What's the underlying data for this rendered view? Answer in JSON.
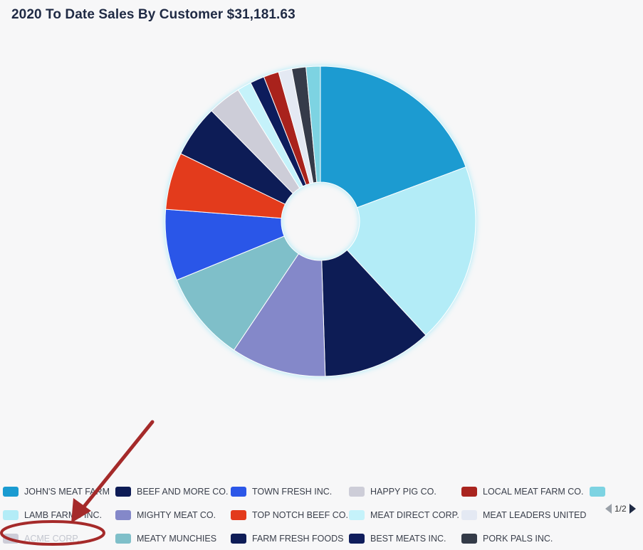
{
  "title": "2020 To Date Sales By Customer $31,181.63",
  "chart_data": {
    "type": "pie",
    "donut": true,
    "title": "2020 To Date Sales By Customer $31,181.63",
    "slices": [
      {
        "label": "JOHN'S MEAT FARM",
        "value": 19.5,
        "color": "#1a9bd1"
      },
      {
        "label": "LAMB FARMS INC.",
        "value": 19.0,
        "color": "#b3ecf7"
      },
      {
        "label": "BEEF AND MORE CO.",
        "value": 11.5,
        "color": "#0d1b55"
      },
      {
        "label": "MIGHTY MEAT CO.",
        "value": 10.0,
        "color": "#8488c9"
      },
      {
        "label": "MEATY MUNCHIES",
        "value": 9.5,
        "color": "#7fbfc9"
      },
      {
        "label": "TOWN FRESH INC.",
        "value": 7.5,
        "color": "#2c57e8"
      },
      {
        "label": "TOP NOTCH BEEF CO.",
        "value": 6.0,
        "color": "#e33a1c"
      },
      {
        "label": "FARM FRESH FOODS",
        "value": 5.5,
        "color": "#0e1c57"
      },
      {
        "label": "HAPPY PIG CO.",
        "value": 3.5,
        "color": "#cdcdd8"
      },
      {
        "label": "MEAT DIRECT CORP.",
        "value": 1.5,
        "color": "#c5f2fa"
      },
      {
        "label": "BEST MEATS INC.",
        "value": 1.5,
        "color": "#0f1d5c"
      },
      {
        "label": "LOCAL MEAT FARM CO.",
        "value": 1.6,
        "color": "#a9241f"
      },
      {
        "label": "MEAT LEADERS UNITED",
        "value": 1.4,
        "color": "#e4e9f3"
      },
      {
        "label": "PORK PALS INC.",
        "value": 1.5,
        "color": "#343b48"
      },
      {
        "label": "",
        "value": 1.5,
        "color": "#7dd3e2"
      }
    ],
    "legend_position": "bottom"
  },
  "legend": {
    "rows": [
      [
        {
          "label": "JOHN'S MEAT FARM",
          "color": "#1a9bd1"
        },
        {
          "label": "BEEF AND MORE CO.",
          "color": "#0d1b55"
        },
        {
          "label": "TOWN FRESH INC.",
          "color": "#2c57e8"
        },
        {
          "label": "HAPPY PIG CO.",
          "color": "#cdcdd8"
        },
        {
          "label": "LOCAL MEAT FARM CO.",
          "color": "#a9241f"
        },
        {
          "label": "",
          "color": "#7dd3e2"
        }
      ],
      [
        {
          "label": "LAMB FARMS INC.",
          "color": "#b3ecf7"
        },
        {
          "label": "MIGHTY MEAT CO.",
          "color": "#8488c9"
        },
        {
          "label": "TOP NOTCH BEEF CO.",
          "color": "#e33a1c"
        },
        {
          "label": "MEAT DIRECT CORP.",
          "color": "#c5f2fa"
        },
        {
          "label": "MEAT LEADERS UNITED",
          "color": "#e4e9f3"
        }
      ],
      [
        {
          "label": "ACME CORP.",
          "color": "#cdcdd8",
          "dimmed": true
        },
        {
          "label": "MEATY MUNCHIES",
          "color": "#7fbfc9"
        },
        {
          "label": "FARM FRESH FOODS",
          "color": "#0e1c57"
        },
        {
          "label": "BEST MEATS INC.",
          "color": "#0f1d5c"
        },
        {
          "label": "PORK PALS INC.",
          "color": "#343b48"
        }
      ]
    ],
    "page": "1/2"
  },
  "annotation": {
    "color": "#a52a2a",
    "shape": "arrow-and-ellipse"
  }
}
